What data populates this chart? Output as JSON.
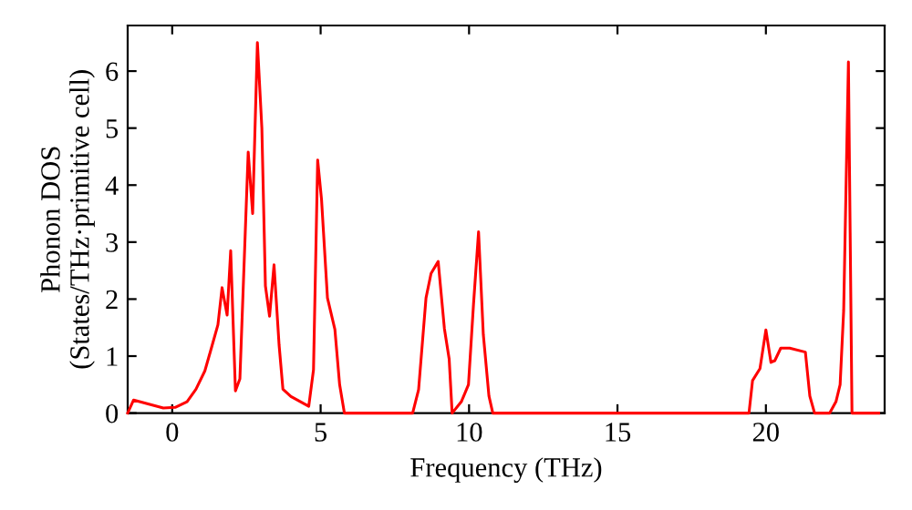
{
  "chart_data": {
    "type": "line",
    "xlabel": "Frequency (THz)",
    "ylabel": "Phonon DOS\n(States/THz·primitive cell)",
    "xlim": [
      -1.5,
      24
    ],
    "ylim": [
      0,
      6.8
    ],
    "xticks": [
      0,
      5,
      10,
      15,
      20
    ],
    "yticks": [
      0,
      1,
      2,
      3,
      4,
      5,
      6
    ],
    "grid": false,
    "marker": "none",
    "line_style": "solid",
    "series": [
      {
        "color": "#ff0000",
        "x": [
          -1.5,
          -1.3,
          -0.3,
          0.1,
          0.5,
          0.8,
          1.1,
          1.33,
          1.54,
          1.68,
          1.85,
          1.97,
          2.13,
          2.28,
          2.56,
          2.71,
          2.87,
          3.02,
          3.14,
          3.28,
          3.43,
          3.6,
          3.73,
          4.0,
          4.6,
          4.76,
          4.9,
          5.03,
          5.23,
          5.48,
          5.64,
          5.8,
          8.1,
          8.3,
          8.55,
          8.72,
          8.96,
          9.17,
          9.33,
          9.43,
          9.74,
          9.98,
          10.15,
          10.32,
          10.48,
          10.67,
          10.8,
          19.43,
          19.55,
          19.8,
          20.0,
          20.17,
          20.3,
          20.5,
          20.8,
          21.33,
          21.48,
          21.64,
          22.15,
          22.36,
          22.5,
          22.62,
          22.78,
          22.9,
          23.8
        ],
        "values": [
          0,
          0.23,
          0.09,
          0.1,
          0.2,
          0.42,
          0.74,
          1.16,
          1.55,
          2.2,
          1.72,
          2.85,
          0.39,
          0.6,
          4.58,
          3.5,
          6.5,
          5.0,
          2.23,
          1.7,
          2.6,
          1.2,
          0.42,
          0.29,
          0.12,
          0.76,
          4.44,
          3.75,
          2.02,
          1.47,
          0.5,
          0,
          0,
          0.41,
          2.02,
          2.45,
          2.66,
          1.48,
          0.95,
          0,
          0.2,
          0.5,
          1.91,
          3.18,
          1.38,
          0.3,
          0,
          0,
          0.57,
          0.78,
          1.46,
          0.89,
          0.92,
          1.14,
          1.14,
          1.07,
          0.3,
          0,
          0,
          0.2,
          0.5,
          1.8,
          6.16,
          0,
          0
        ]
      }
    ]
  }
}
